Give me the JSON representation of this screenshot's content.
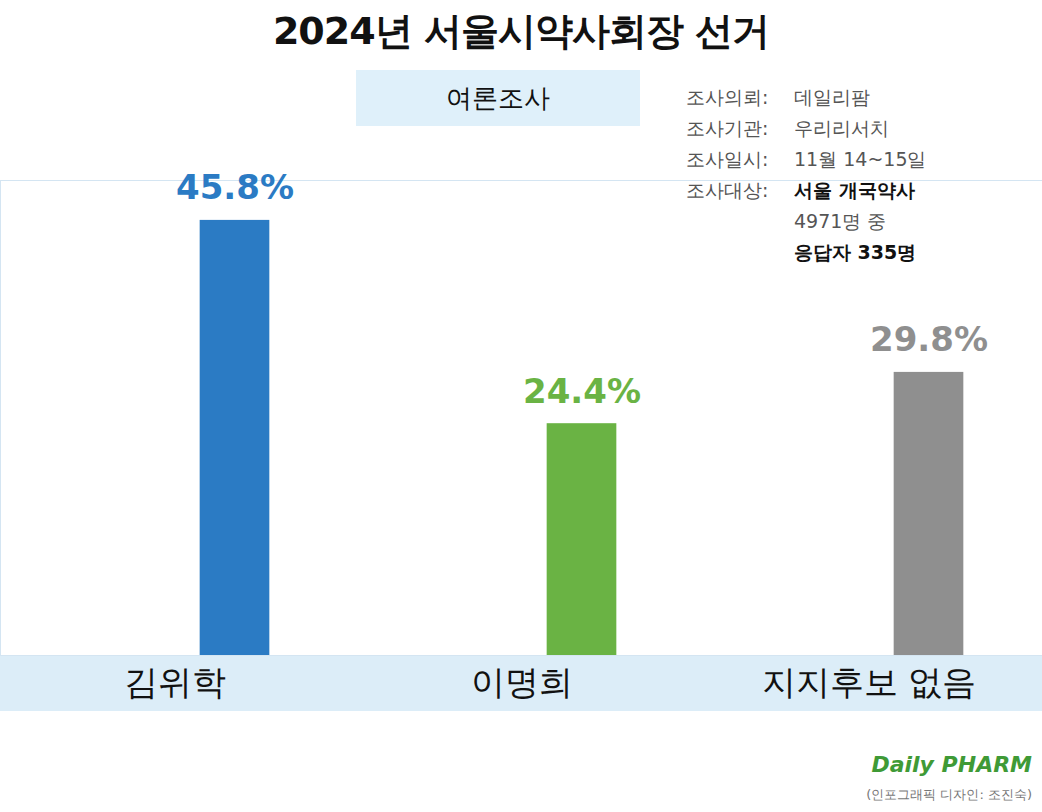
{
  "chart_data": {
    "type": "bar",
    "title": "2024년 서울시약사회장 선거",
    "subtitle": "여론조사",
    "info": [
      {
        "label": "조사의뢰:",
        "lines": [
          "데일리팜"
        ]
      },
      {
        "label": "조사기관:",
        "lines": [
          "우리리서치"
        ]
      },
      {
        "label": "조사일시:",
        "lines": [
          "11월 14~15일"
        ]
      },
      {
        "label": "조사대상:",
        "lines": [
          "서울 개국약사",
          "4971명 중",
          "응답자 335명"
        ]
      }
    ],
    "categories": [
      "김위학",
      "이명희",
      "지지후보 없음"
    ],
    "values": [
      45.8,
      24.4,
      29.8
    ],
    "value_labels": [
      "45.8%",
      "24.4%",
      "29.8%"
    ],
    "colors": [
      "#2b7bc4",
      "#6ab344",
      "#8f8f8f"
    ],
    "data_labels": true,
    "ylim": [
      0,
      50
    ],
    "tick_labels": "x",
    "source": "Daily PHARM",
    "credit": "(인포그래픽 디자인: 조진숙)"
  }
}
